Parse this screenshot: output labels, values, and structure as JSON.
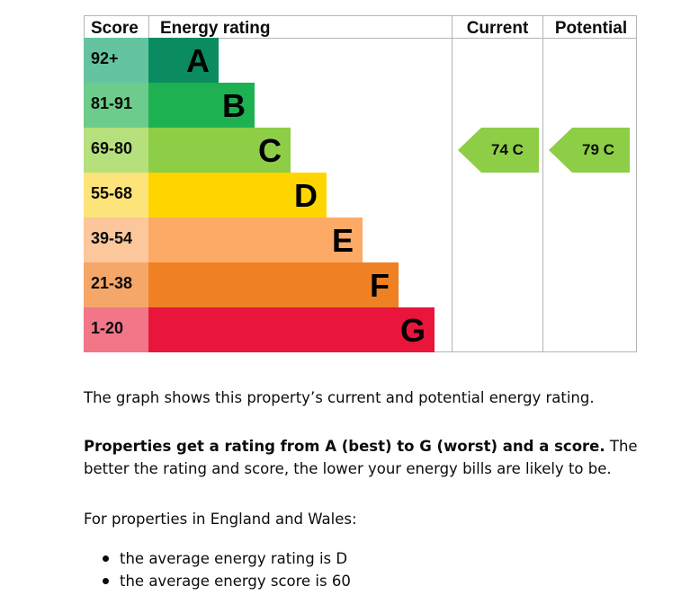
{
  "chart_data": {
    "type": "bar",
    "title": "",
    "headers": {
      "score": "Score",
      "rating": "Energy rating",
      "current": "Current",
      "potential": "Potential"
    },
    "bands": [
      {
        "letter": "A",
        "score": "92+",
        "color": "#0b8c60",
        "score_bg": "#64c4a0",
        "length": 1
      },
      {
        "letter": "B",
        "score": "81-91",
        "color": "#1eb152",
        "score_bg": "#6dcc8b",
        "length": 2
      },
      {
        "letter": "C",
        "score": "69-80",
        "color": "#8dce46",
        "score_bg": "#b6e07c",
        "length": 3
      },
      {
        "letter": "D",
        "score": "55-68",
        "color": "#ffd500",
        "score_bg": "#fde47a",
        "length": 4
      },
      {
        "letter": "E",
        "score": "39-54",
        "color": "#fcaa65",
        "score_bg": "#fcc79a",
        "length": 5
      },
      {
        "letter": "F",
        "score": "21-38",
        "color": "#ef8023",
        "score_bg": "#f5a76a",
        "length": 6
      },
      {
        "letter": "G",
        "score": "1-20",
        "color": "#e9153b",
        "score_bg": "#f07688",
        "length": 7
      }
    ],
    "current": {
      "score": 74,
      "band": "C",
      "label": "74  C",
      "color": "#8dce46"
    },
    "potential": {
      "score": 79,
      "band": "C",
      "label": "79  C",
      "color": "#8dce46"
    }
  },
  "text": {
    "graph_description": "The graph shows this property’s current and potential energy rating.",
    "rating_bold": "Properties get a rating from A (best) to G (worst) and a score.",
    "rating_rest": " The better the rating and score, the lower your energy bills are likely to be.",
    "england_wales": "For properties in England and Wales:",
    "bullets": [
      "the average energy rating is D",
      "the average energy score is 60"
    ]
  },
  "colors": {
    "grid": "#b1b4b6",
    "text": "#0b0c0c"
  }
}
